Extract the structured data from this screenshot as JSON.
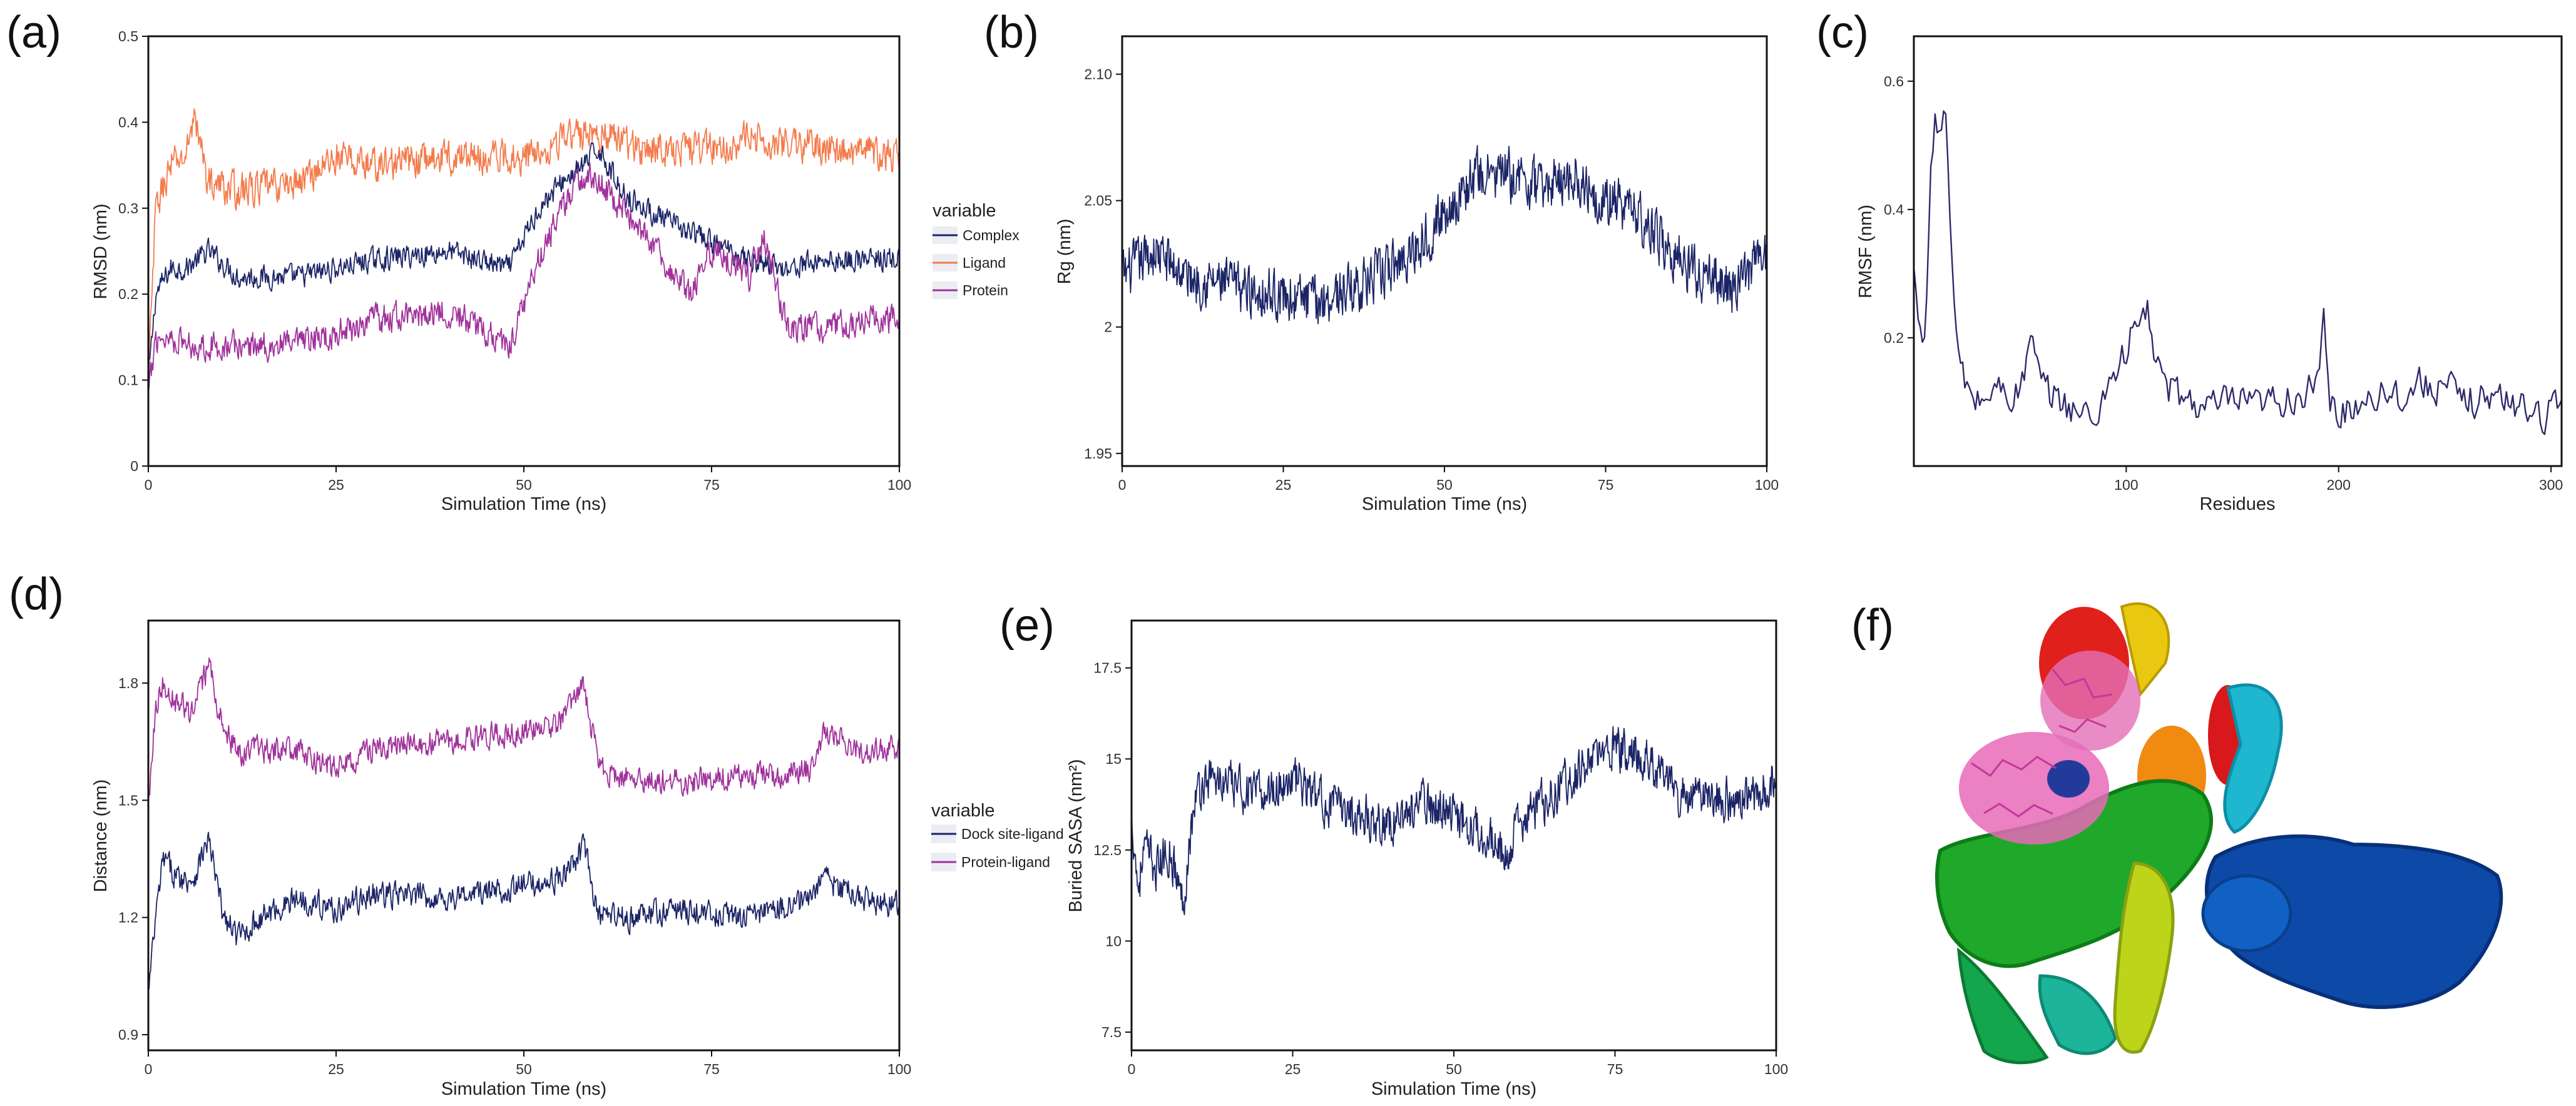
{
  "figure": {
    "panels": [
      "(a)",
      "(b)",
      "(c)",
      "(d)",
      "(e)",
      "(f)"
    ]
  },
  "colors": {
    "navy": "#1b2466",
    "orange": "#f47b4c",
    "magenta": "#a0319b",
    "line_c": "#2e2a6b"
  },
  "chart_data": [
    {
      "panel": "(a)",
      "type": "line",
      "title": "",
      "xlabel": "Simulation Time (ns)",
      "ylabel": "RMSD (nm)",
      "xlim": [
        0,
        100
      ],
      "ylim": [
        0,
        0.5
      ],
      "xticks": [
        "0",
        "25",
        "50",
        "75",
        "100"
      ],
      "yticks": [
        "0",
        "0.1",
        "0.2",
        "0.3",
        "0.4",
        "0.5"
      ],
      "legend": {
        "title": "variable",
        "placement": "right",
        "entries": [
          "Complex",
          "Ligand",
          "Protein"
        ]
      },
      "series": [
        {
          "name": "Complex",
          "color": "#1b2466",
          "noise": 0.012,
          "x": [
            0,
            1,
            3,
            5,
            8,
            12,
            20,
            30,
            40,
            48,
            52,
            55,
            58,
            60,
            63,
            66,
            70,
            75,
            80,
            85,
            90,
            95,
            100
          ],
          "y": [
            0.1,
            0.2,
            0.23,
            0.23,
            0.25,
            0.22,
            0.22,
            0.24,
            0.25,
            0.23,
            0.3,
            0.33,
            0.35,
            0.37,
            0.32,
            0.3,
            0.28,
            0.26,
            0.24,
            0.23,
            0.24,
            0.24,
            0.24
          ]
        },
        {
          "name": "Ligand",
          "color": "#f47b4c",
          "noise": 0.018,
          "x": [
            0,
            1,
            3,
            5,
            6,
            8,
            12,
            20,
            25,
            30,
            40,
            50,
            55,
            60,
            65,
            70,
            75,
            80,
            90,
            100
          ],
          "y": [
            0.1,
            0.3,
            0.35,
            0.36,
            0.41,
            0.33,
            0.32,
            0.33,
            0.36,
            0.35,
            0.36,
            0.36,
            0.38,
            0.39,
            0.37,
            0.37,
            0.37,
            0.38,
            0.37,
            0.36
          ]
        },
        {
          "name": "Protein",
          "color": "#a0319b",
          "noise": 0.015,
          "x": [
            0,
            1,
            3,
            6,
            12,
            20,
            30,
            40,
            48,
            52,
            55,
            58,
            60,
            63,
            66,
            70,
            72,
            75,
            80,
            82,
            85,
            90,
            95,
            100
          ],
          "y": [
            0.08,
            0.15,
            0.15,
            0.14,
            0.14,
            0.14,
            0.17,
            0.18,
            0.14,
            0.24,
            0.3,
            0.34,
            0.33,
            0.3,
            0.27,
            0.22,
            0.2,
            0.25,
            0.22,
            0.27,
            0.16,
            0.16,
            0.17,
            0.17
          ]
        }
      ]
    },
    {
      "panel": "(b)",
      "type": "line",
      "title": "",
      "xlabel": "Simulation Time (ns)",
      "ylabel": "Rg (nm)",
      "xlim": [
        0,
        100
      ],
      "ylim": [
        1.945,
        2.115
      ],
      "yticks_values": [
        1.95,
        2.0,
        2.05,
        2.1
      ],
      "xticks": [
        "0",
        "25",
        "50",
        "75",
        "100"
      ],
      "yticks": [
        "1.95",
        "2",
        "2.05",
        "2.10"
      ],
      "series": [
        {
          "name": "Rg",
          "color": "#1b2466",
          "noise": 0.009,
          "x": [
            0,
            5,
            10,
            20,
            30,
            40,
            45,
            50,
            55,
            60,
            65,
            70,
            75,
            80,
            85,
            90,
            95,
            100
          ],
          "y": [
            2.02,
            2.03,
            2.02,
            2.015,
            2.01,
            2.02,
            2.03,
            2.045,
            2.06,
            2.06,
            2.055,
            2.06,
            2.05,
            2.045,
            2.03,
            2.02,
            2.015,
            2.03
          ]
        }
      ]
    },
    {
      "panel": "(c)",
      "type": "line",
      "title": "",
      "xlabel": "Residues",
      "ylabel": "RMSF (nm)",
      "xlim": [
        0,
        305
      ],
      "ylim": [
        0,
        0.67
      ],
      "yticks_values": [
        0.2,
        0.4,
        0.6
      ],
      "xticks_values": [
        100,
        200,
        300
      ],
      "xticks": [
        "100",
        "200",
        "300"
      ],
      "yticks": [
        "0.2",
        "0.4",
        "0.6"
      ],
      "series": [
        {
          "name": "RMSF",
          "color": "#2e2a6b",
          "noise": 0.025,
          "x": [
            0,
            3,
            5,
            8,
            10,
            12,
            15,
            18,
            20,
            22,
            25,
            30,
            40,
            50,
            55,
            60,
            70,
            80,
            85,
            90,
            100,
            105,
            110,
            115,
            120,
            130,
            140,
            150,
            160,
            170,
            180,
            190,
            193,
            196,
            200,
            210,
            220,
            230,
            240,
            250,
            260,
            270,
            280,
            290,
            300,
            305
          ],
          "y": [
            0.3,
            0.2,
            0.21,
            0.45,
            0.55,
            0.5,
            0.57,
            0.3,
            0.2,
            0.15,
            0.12,
            0.1,
            0.12,
            0.11,
            0.2,
            0.12,
            0.1,
            0.08,
            0.07,
            0.12,
            0.18,
            0.22,
            0.24,
            0.15,
            0.12,
            0.1,
            0.09,
            0.1,
            0.09,
            0.1,
            0.11,
            0.12,
            0.22,
            0.1,
            0.08,
            0.1,
            0.12,
            0.11,
            0.13,
            0.12,
            0.1,
            0.11,
            0.1,
            0.09,
            0.08,
            0.1
          ]
        }
      ]
    },
    {
      "panel": "(d)",
      "type": "line",
      "title": "",
      "xlabel": "Simulation Time (ns)",
      "ylabel": "Distance (nm)",
      "xlim": [
        0,
        100
      ],
      "ylim": [
        0.86,
        1.96
      ],
      "yticks_values": [
        0.9,
        1.2,
        1.5,
        1.8
      ],
      "xticks": [
        "0",
        "25",
        "50",
        "75",
        "100"
      ],
      "yticks": [
        "0.9",
        "1.2",
        "1.5",
        "1.8"
      ],
      "legend": {
        "title": "variable",
        "placement": "right",
        "entries": [
          "Dock site-ligand",
          "Protein-ligand"
        ]
      },
      "series": [
        {
          "name": "Dock site-ligand",
          "color": "#1b2466",
          "noise": 0.03,
          "x": [
            0,
            1,
            2,
            4,
            6,
            8,
            10,
            12,
            15,
            20,
            25,
            30,
            40,
            50,
            55,
            58,
            60,
            65,
            70,
            80,
            88,
            90,
            95,
            100
          ],
          "y": [
            1.0,
            1.2,
            1.35,
            1.3,
            1.3,
            1.4,
            1.2,
            1.15,
            1.2,
            1.25,
            1.22,
            1.26,
            1.25,
            1.28,
            1.3,
            1.38,
            1.2,
            1.2,
            1.22,
            1.2,
            1.25,
            1.3,
            1.25,
            1.23
          ]
        },
        {
          "name": "Protein-ligand",
          "color": "#a0319b",
          "noise": 0.03,
          "x": [
            0,
            1,
            2,
            4,
            6,
            8,
            10,
            12,
            15,
            20,
            25,
            30,
            40,
            50,
            55,
            58,
            60,
            65,
            70,
            80,
            88,
            90,
            95,
            100
          ],
          "y": [
            1.5,
            1.75,
            1.8,
            1.75,
            1.72,
            1.85,
            1.68,
            1.62,
            1.63,
            1.62,
            1.58,
            1.63,
            1.65,
            1.68,
            1.7,
            1.8,
            1.58,
            1.55,
            1.55,
            1.56,
            1.58,
            1.68,
            1.62,
            1.63
          ]
        }
      ]
    },
    {
      "panel": "(e)",
      "type": "line",
      "title": "",
      "xlabel": "Simulation Time (ns)",
      "ylabel": "Buried SASA (nm²)",
      "xlim": [
        0,
        100
      ],
      "ylim": [
        7.0,
        18.8
      ],
      "yticks_values": [
        7.5,
        10,
        12.5,
        15,
        17.5
      ],
      "xticks": [
        "0",
        "25",
        "50",
        "75",
        "100"
      ],
      "yticks": [
        "7.5",
        "10",
        "12.5",
        "15",
        "17.5"
      ],
      "series": [
        {
          "name": "Buried SASA",
          "color": "#1b2466",
          "noise": 0.55,
          "x": [
            0,
            1,
            2,
            4,
            6,
            8,
            9,
            10,
            12,
            15,
            20,
            25,
            30,
            35,
            40,
            45,
            50,
            55,
            58,
            60,
            65,
            70,
            75,
            80,
            85,
            90,
            95,
            100
          ],
          "y": [
            13.5,
            11.5,
            12.5,
            12.0,
            12.5,
            11.0,
            12.8,
            14.0,
            14.5,
            14.3,
            14.0,
            14.5,
            13.8,
            13.5,
            13.2,
            13.8,
            13.5,
            13.0,
            12.2,
            13.2,
            14.0,
            14.8,
            15.3,
            15.0,
            14.0,
            14.0,
            13.8,
            14.5
          ]
        }
      ]
    }
  ]
}
